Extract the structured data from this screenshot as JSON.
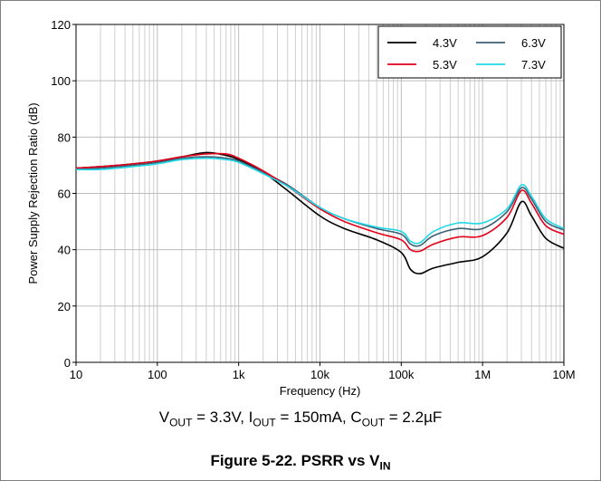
{
  "chart_data": {
    "type": "line",
    "title": "",
    "xlabel": "Frequency (Hz)",
    "ylabel": "Power Supply Rejection Ratio (dB)",
    "xscale": "log",
    "xlim": [
      10,
      10000000
    ],
    "ylim": [
      0,
      120
    ],
    "x_ticks": [
      10,
      100,
      1000,
      10000,
      100000,
      1000000,
      10000000
    ],
    "x_tick_labels": [
      "10",
      "100",
      "1k",
      "10k",
      "100k",
      "1M",
      "10M"
    ],
    "y_ticks": [
      0,
      20,
      40,
      60,
      80,
      100,
      120
    ],
    "y_tick_labels": [
      "0",
      "20",
      "40",
      "60",
      "80",
      "100",
      "120"
    ],
    "grid": true,
    "legend_position": "top-right",
    "series": [
      {
        "name": "4.3V",
        "color": "#000000",
        "x": [
          10,
          20,
          50,
          100,
          200,
          400,
          700,
          1000,
          2000,
          4000,
          10000,
          20000,
          50000,
          100000,
          130000,
          170000,
          250000,
          500000,
          1000000,
          2000000,
          3000000,
          4000000,
          6000000,
          10000000
        ],
        "y": [
          69,
          69.5,
          70.5,
          71.5,
          73,
          74.5,
          73.5,
          72,
          67.5,
          61,
          52,
          47.5,
          43.5,
          39,
          33,
          31.5,
          33.5,
          35.5,
          37.5,
          46,
          57,
          52,
          44,
          40.5
        ]
      },
      {
        "name": "5.3V",
        "color": "#e3001b",
        "x": [
          10,
          20,
          50,
          100,
          200,
          400,
          700,
          1000,
          2000,
          4000,
          10000,
          20000,
          50000,
          100000,
          130000,
          170000,
          250000,
          500000,
          1000000,
          2000000,
          3000000,
          4000000,
          6000000,
          10000000
        ],
        "y": [
          69,
          69.5,
          70.5,
          71.5,
          73,
          74,
          74,
          72.5,
          68,
          62.5,
          54.5,
          50,
          46,
          43.5,
          40,
          39.5,
          42,
          44.5,
          45,
          51.5,
          61,
          56.5,
          48.5,
          45.5
        ]
      },
      {
        "name": "6.3V",
        "color": "#3d5f73",
        "x": [
          10,
          20,
          50,
          100,
          200,
          400,
          700,
          1000,
          2000,
          4000,
          10000,
          20000,
          50000,
          100000,
          130000,
          170000,
          250000,
          500000,
          1000000,
          2000000,
          3000000,
          4000000,
          6000000,
          10000000
        ],
        "y": [
          68.5,
          69,
          70,
          71,
          72.5,
          73,
          72.5,
          71.5,
          67.5,
          63,
          55,
          51,
          47.5,
          45.5,
          42,
          41.5,
          45,
          47.5,
          47.5,
          53.5,
          62,
          58,
          50,
          47
        ]
      },
      {
        "name": "7.3V",
        "color": "#22d8e8",
        "x": [
          10,
          20,
          50,
          100,
          200,
          400,
          700,
          1000,
          2000,
          4000,
          10000,
          20000,
          50000,
          100000,
          130000,
          170000,
          250000,
          500000,
          1000000,
          2000000,
          3000000,
          4000000,
          6000000,
          10000000
        ],
        "y": [
          68.5,
          68.5,
          69.5,
          70.5,
          72,
          72.5,
          72,
          71,
          67,
          62.5,
          55,
          51,
          48,
          46.5,
          43,
          42.5,
          46.5,
          49.5,
          49.5,
          54.5,
          63,
          59,
          51,
          47.5
        ]
      }
    ]
  },
  "conditions": {
    "v": "V",
    "v_sub": "OUT",
    "v_val": " = 3.3V, I",
    "i_sub": "OUT",
    "i_val": " = 150mA, C",
    "c_sub": "OUT",
    "c_val": " = 2.2µF"
  },
  "caption": {
    "text": "Figure 5-22. PSRR vs V",
    "sub": "IN"
  }
}
